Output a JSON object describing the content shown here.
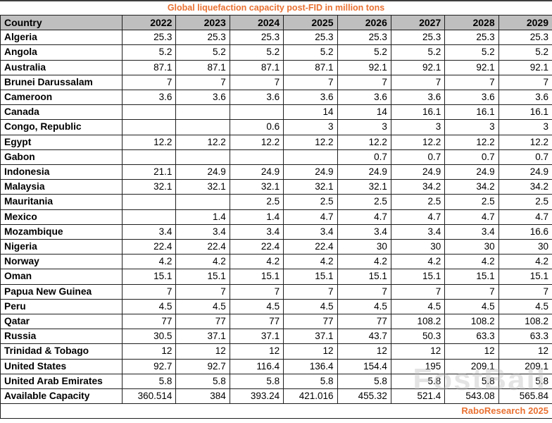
{
  "title": "Global liquefaction capacity post-FID in million tons",
  "footer": {
    "credit": "RaboResearch 2025"
  },
  "watermark": "FostBall",
  "colors": {
    "accent_orange": "#E97132",
    "header_bg": "#BFBFBF",
    "border": "#1f1f1f",
    "text": "#000000"
  },
  "chart_data": {
    "type": "table",
    "title": "Global liquefaction capacity post-FID in million tons",
    "unit": "million tons",
    "columns": [
      "Country",
      "2022",
      "2023",
      "2024",
      "2025",
      "2026",
      "2027",
      "2028",
      "2029"
    ],
    "rows": [
      {
        "country": "Algeria",
        "values": [
          "25.3",
          "25.3",
          "25.3",
          "25.3",
          "25.3",
          "25.3",
          "25.3",
          "25.3"
        ]
      },
      {
        "country": "Angola",
        "values": [
          "5.2",
          "5.2",
          "5.2",
          "5.2",
          "5.2",
          "5.2",
          "5.2",
          "5.2"
        ]
      },
      {
        "country": "Australia",
        "values": [
          "87.1",
          "87.1",
          "87.1",
          "87.1",
          "92.1",
          "92.1",
          "92.1",
          "92.1"
        ]
      },
      {
        "country": "Brunei Darussalam",
        "values": [
          "7",
          "7",
          "7",
          "7",
          "7",
          "7",
          "7",
          "7"
        ]
      },
      {
        "country": "Cameroon",
        "values": [
          "3.6",
          "3.6",
          "3.6",
          "3.6",
          "3.6",
          "3.6",
          "3.6",
          "3.6"
        ]
      },
      {
        "country": "Canada",
        "values": [
          "",
          "",
          "",
          "14",
          "14",
          "16.1",
          "16.1",
          "16.1"
        ]
      },
      {
        "country": "Congo, Republic",
        "values": [
          "",
          "",
          "0.6",
          "3",
          "3",
          "3",
          "3",
          "3"
        ]
      },
      {
        "country": "Egypt",
        "values": [
          "12.2",
          "12.2",
          "12.2",
          "12.2",
          "12.2",
          "12.2",
          "12.2",
          "12.2"
        ]
      },
      {
        "country": "Gabon",
        "values": [
          "",
          "",
          "",
          "",
          "0.7",
          "0.7",
          "0.7",
          "0.7"
        ]
      },
      {
        "country": "Indonesia",
        "values": [
          "21.1",
          "24.9",
          "24.9",
          "24.9",
          "24.9",
          "24.9",
          "24.9",
          "24.9"
        ]
      },
      {
        "country": "Malaysia",
        "values": [
          "32.1",
          "32.1",
          "32.1",
          "32.1",
          "32.1",
          "34.2",
          "34.2",
          "34.2"
        ]
      },
      {
        "country": "Mauritania",
        "values": [
          "",
          "",
          "2.5",
          "2.5",
          "2.5",
          "2.5",
          "2.5",
          "2.5"
        ]
      },
      {
        "country": "Mexico",
        "values": [
          "",
          "1.4",
          "1.4",
          "4.7",
          "4.7",
          "4.7",
          "4.7",
          "4.7"
        ]
      },
      {
        "country": "Mozambique",
        "values": [
          "3.4",
          "3.4",
          "3.4",
          "3.4",
          "3.4",
          "3.4",
          "3.4",
          "16.6"
        ]
      },
      {
        "country": "Nigeria",
        "values": [
          "22.4",
          "22.4",
          "22.4",
          "22.4",
          "30",
          "30",
          "30",
          "30"
        ]
      },
      {
        "country": "Norway",
        "values": [
          "4.2",
          "4.2",
          "4.2",
          "4.2",
          "4.2",
          "4.2",
          "4.2",
          "4.2"
        ]
      },
      {
        "country": "Oman",
        "values": [
          "15.1",
          "15.1",
          "15.1",
          "15.1",
          "15.1",
          "15.1",
          "15.1",
          "15.1"
        ]
      },
      {
        "country": "Papua New Guinea",
        "values": [
          "7",
          "7",
          "7",
          "7",
          "7",
          "7",
          "7",
          "7"
        ]
      },
      {
        "country": "Peru",
        "values": [
          "4.5",
          "4.5",
          "4.5",
          "4.5",
          "4.5",
          "4.5",
          "4.5",
          "4.5"
        ]
      },
      {
        "country": "Qatar",
        "values": [
          "77",
          "77",
          "77",
          "77",
          "77",
          "108.2",
          "108.2",
          "108.2"
        ]
      },
      {
        "country": "Russia",
        "values": [
          "30.5",
          "37.1",
          "37.1",
          "37.1",
          "43.7",
          "50.3",
          "63.3",
          "63.3"
        ]
      },
      {
        "country": "Trinidad & Tobago",
        "values": [
          "12",
          "12",
          "12",
          "12",
          "12",
          "12",
          "12",
          "12"
        ]
      },
      {
        "country": "United States",
        "values": [
          "92.7",
          "92.7",
          "116.4",
          "136.4",
          "154.4",
          "195",
          "209.1",
          "209.1"
        ]
      },
      {
        "country": "United Arab Emirates",
        "values": [
          "5.8",
          "5.8",
          "5.8",
          "5.8",
          "5.8",
          "5.8",
          "5.8",
          "5.8"
        ]
      },
      {
        "country": "Available Capacity",
        "values": [
          "360.514",
          "384",
          "393.24",
          "421.016",
          "455.32",
          "521.4",
          "543.08",
          "565.84"
        ]
      }
    ]
  }
}
